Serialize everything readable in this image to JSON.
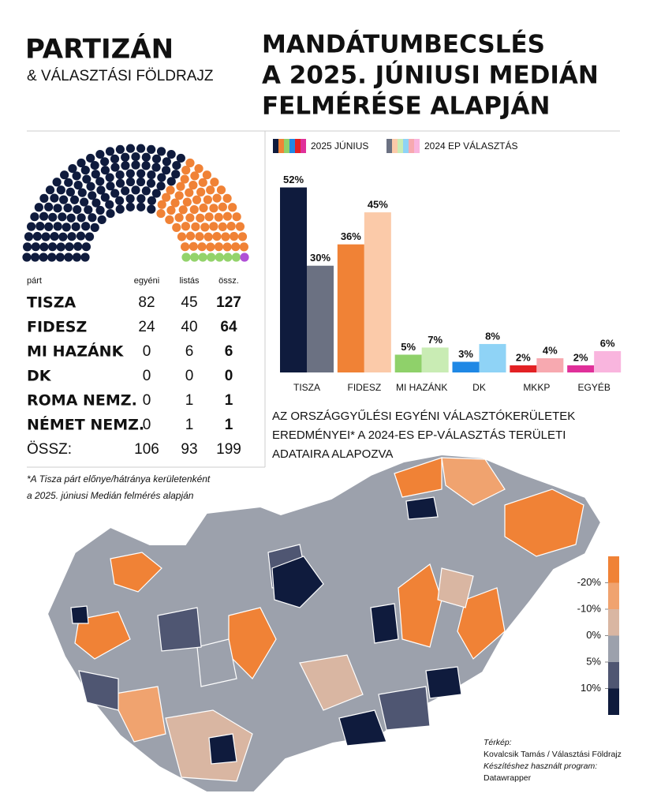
{
  "header": {
    "logo": "PARTIZÁN",
    "logo_sub": "& VÁLASZTÁSI FÖLDRAJZ",
    "title": [
      "MANDÁTUMBECSLÉS",
      "A 2025. JÚNIUSI MEDIÁN",
      "FELMÉRÉSE ALAPJÁN"
    ]
  },
  "table": {
    "columns": [
      "párt",
      "egyéni",
      "listás",
      "össz."
    ],
    "rows": [
      [
        "TISZA",
        82,
        45,
        127
      ],
      [
        "FIDESZ",
        24,
        40,
        64
      ],
      [
        "MI HAZÁNK",
        0,
        6,
        6
      ],
      [
        "DK",
        0,
        0,
        0
      ],
      [
        "ROMA NEMZ.",
        0,
        1,
        1
      ],
      [
        "NÉMET NEMZ.",
        0,
        1,
        1
      ]
    ],
    "total": [
      "ÖSSZ:",
      106,
      93,
      199
    ]
  },
  "chart_data": [
    {
      "type": "parliament",
      "colors": [
        "#0f1b3d",
        "#f08236",
        "#93d36b",
        "#1f88e5",
        "#93d36b",
        "#b04fd6"
      ]
    },
    {
      "type": "bar",
      "categories": [
        "TISZA",
        "FIDESZ",
        "MI HAZÁNK",
        "DK",
        "MKKP",
        "EGYÉB"
      ],
      "ylim": [
        0,
        55
      ],
      "series": [
        {
          "name": "2025 JÚNIUS",
          "colors": [
            "#0f1b3d",
            "#f08236",
            "#8fd16a",
            "#1f88e5",
            "#e32124",
            "#e0309a"
          ],
          "values": [
            52,
            36,
            5,
            3,
            2,
            2
          ],
          "value_labels": [
            "52%",
            "36%",
            "5%",
            "3%",
            "2%",
            "2%"
          ]
        },
        {
          "name": "2024 EP VÁLASZTÁS",
          "colors": [
            "#6b7182",
            "#fbcaa9",
            "#c9ecb4",
            "#8fd3f6",
            "#f7a9b0",
            "#f9b5de"
          ],
          "values": [
            30,
            45,
            7,
            8,
            4,
            6
          ],
          "value_labels": [
            "30%",
            "45%",
            "7%",
            "8%",
            "4%",
            "6%"
          ]
        }
      ]
    },
    {
      "type": "choropleth",
      "title": [
        "AZ ORSZÁGGYŰLÉSI EGYÉNI VÁLASZTÓKERÜLETEK",
        "EREDMÉNYEI* A 2024-ES EP-VÁLASZTÁS TERÜLETI",
        "ADATAIRA ALAPOZVA"
      ],
      "note": [
        "*A Tisza párt előnye/hátránya kerületenként",
        "a 2025. júniusi Medián felmérés alapján"
      ],
      "colors": [
        "#f08236",
        "#f0a36f",
        "#d9b6a2",
        "#9ca1ac",
        "#4f5672",
        "#0f1b3d"
      ],
      "legend_ticks": [
        {
          "value": -20,
          "label": "-20%"
        },
        {
          "value": -10,
          "label": "-10%"
        },
        {
          "value": 0,
          "label": "0%"
        },
        {
          "value": 5,
          "label": "5%"
        },
        {
          "value": 10,
          "label": "10%"
        }
      ]
    }
  ],
  "credits": [
    "Térkép:",
    "Kovalcsik Tamás / Választási Földrajz",
    "Készítéshez használt program:",
    "Datawrapper"
  ]
}
